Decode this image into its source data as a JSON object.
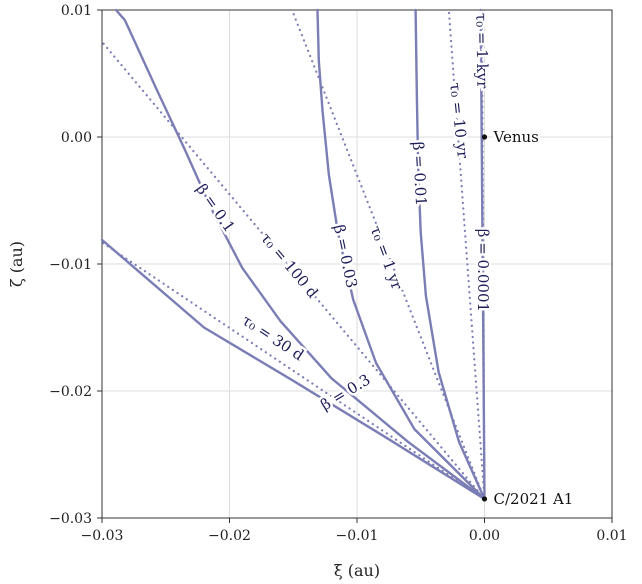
{
  "chart_data": {
    "type": "line",
    "xlabel": "ξ (au)",
    "ylabel": "ζ (au)",
    "xlim": [
      -0.03,
      0.01
    ],
    "ylim": [
      -0.03,
      0.01
    ],
    "x_ticks": [
      -0.03,
      -0.02,
      -0.01,
      0.0,
      0.01
    ],
    "y_ticks": [
      -0.03,
      -0.02,
      -0.01,
      0.0,
      0.01
    ],
    "x_tick_labels": [
      "−0.03",
      "−0.02",
      "−0.01",
      "0.00",
      "0.01"
    ],
    "y_tick_labels": [
      "−0.03",
      "−0.02",
      "−0.01",
      "0.00",
      "0.01"
    ],
    "grid": true,
    "colors": {
      "solid": "#7b7db5",
      "dotted": "#7b7db5",
      "label": "#1e1e5a",
      "grid": "#dddddd"
    },
    "points": [
      {
        "name": "C/2021 A1",
        "x": 0.0,
        "y": -0.0285
      },
      {
        "name": "Venus",
        "x": 0.0,
        "y": 0.0
      }
    ],
    "series": [
      {
        "name": "β = 0.3",
        "style": "solid",
        "points": [
          [
            0.0,
            -0.0285
          ],
          [
            -0.0075,
            -0.0238
          ],
          [
            -0.015,
            -0.0192
          ],
          [
            -0.022,
            -0.015
          ],
          [
            -0.03,
            -0.0081
          ]
        ]
      },
      {
        "name": "β = 0.1",
        "style": "solid",
        "points": [
          [
            0.0,
            -0.0285
          ],
          [
            -0.006,
            -0.024
          ],
          [
            -0.012,
            -0.019
          ],
          [
            -0.016,
            -0.0145
          ],
          [
            -0.019,
            -0.0103
          ],
          [
            -0.0215,
            -0.0055
          ],
          [
            -0.0235,
            -0.001
          ],
          [
            -0.0256,
            0.0035
          ],
          [
            -0.0282,
            0.0092
          ],
          [
            -0.0289,
            0.01
          ]
        ]
      },
      {
        "name": "β = 0.03",
        "style": "solid",
        "points": [
          [
            0.0,
            -0.0285
          ],
          [
            -0.0055,
            -0.023
          ],
          [
            -0.0085,
            -0.0178
          ],
          [
            -0.0103,
            -0.0128
          ],
          [
            -0.0115,
            -0.0075
          ],
          [
            -0.0122,
            -0.003
          ],
          [
            -0.0127,
            0.002
          ],
          [
            -0.013,
            0.006
          ],
          [
            -0.0131,
            0.01
          ]
        ]
      },
      {
        "name": "β = 0.01",
        "style": "solid",
        "points": [
          [
            0.0,
            -0.0285
          ],
          [
            -0.002,
            -0.024
          ],
          [
            -0.0036,
            -0.0185
          ],
          [
            -0.0046,
            -0.0125
          ],
          [
            -0.005,
            -0.0075
          ],
          [
            -0.0052,
            -0.0025
          ],
          [
            -0.0053,
            0.003
          ],
          [
            -0.0054,
            0.01
          ]
        ]
      },
      {
        "name": "β = 0.0001",
        "style": "solid",
        "points": [
          [
            0.0,
            -0.0285
          ],
          [
            -0.0001,
            -0.015
          ],
          [
            -0.0002,
            -0.002
          ],
          [
            -0.0003,
            0.01
          ]
        ]
      },
      {
        "name": "τ₀ = 30 d",
        "style": "dotted",
        "points": [
          [
            0.0,
            -0.0285
          ],
          [
            -0.03,
            -0.0083
          ]
        ]
      },
      {
        "name": "τ₀ = 100 d",
        "style": "dotted",
        "points": [
          [
            0.0,
            -0.0285
          ],
          [
            -0.03,
            0.0075
          ]
        ]
      },
      {
        "name": "τ₀ = 1 yr",
        "style": "dotted",
        "points": [
          [
            0.0,
            -0.0285
          ],
          [
            -0.0151,
            0.01
          ]
        ]
      },
      {
        "name": "τ₀ = 10 yr",
        "style": "dotted",
        "points": [
          [
            0.0,
            -0.0285
          ],
          [
            -0.0028,
            0.01
          ]
        ]
      },
      {
        "name": "τ₀ = 1 kyr",
        "style": "dotted",
        "points": [
          [
            0.0,
            -0.0285
          ],
          [
            -0.0002,
            0.01
          ]
        ]
      }
    ],
    "labels": [
      {
        "text": "β = 0.3",
        "x": -0.0109,
        "y": -0.0201,
        "angle": -31
      },
      {
        "text": "τ₀ = 30 d",
        "x": -0.0166,
        "y": -0.0158,
        "angle": 33
      },
      {
        "text": "β = 0.1",
        "x": -0.0211,
        "y": -0.0056,
        "angle": 55
      },
      {
        "text": "τ₀ = 100 d",
        "x": -0.0153,
        "y": -0.0101,
        "angle": 50
      },
      {
        "text": "β = 0.03",
        "x": -0.0109,
        "y": -0.0094,
        "angle": 78
      },
      {
        "text": "τ₀ = 1 yr",
        "x": -0.0077,
        "y": -0.0095,
        "angle": 70
      },
      {
        "text": "β = 0.01",
        "x": -0.0051,
        "y": -0.0029,
        "angle": 87
      },
      {
        "text": "τ₀ = 10 yr",
        "x": -0.002,
        "y": 0.0013,
        "angle": 84
      },
      {
        "text": "τ₀ = 1 kyr",
        "x": -0.0002,
        "y": 0.0068,
        "angle": 89
      },
      {
        "text": "β = 0.0001",
        "x": -0.0001,
        "y": -0.0105,
        "angle": 90
      }
    ]
  }
}
